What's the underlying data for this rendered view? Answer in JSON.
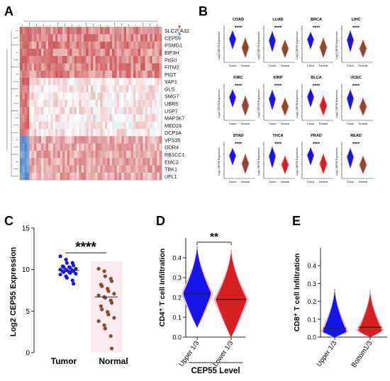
{
  "panels": {
    "A": "A",
    "B": "B",
    "C": "C",
    "D": "D",
    "E": "E"
  },
  "colors": {
    "tumor": "#1515e8",
    "normal": "#8a4a2a",
    "normal_fill": "#d42020",
    "pink": "#f3b4cf",
    "heat_red": "#c83a3a",
    "heat_blue": "#2f6fb5"
  },
  "chart_data": [
    {
      "panel": "A",
      "type": "heatmap",
      "genes": [
        "SLC25A32",
        "CEP55",
        "PSMG1",
        "EIF3H",
        "PIGU",
        "FITM2",
        "PIGT",
        "YAP1",
        "GLS",
        "SMG7",
        "UBR5",
        "USP7",
        "MAP3K7",
        "MED23",
        "DCP1A",
        "VPS35",
        "ODR4",
        "RB1CC1",
        "EMC2",
        "TBK1",
        "UFL1"
      ]
    },
    {
      "panel": "B",
      "type": "violin",
      "ylabel": "Log2 CEP55 Expression",
      "categories": [
        "Tumor",
        "Normal"
      ],
      "significance": "****",
      "cancers": [
        "COAD",
        "LUAD",
        "BRCA",
        "LIHC",
        "KIRC",
        "KIRP",
        "BLCA",
        "UCEC",
        "STAD",
        "THCA",
        "PRAD",
        "READ"
      ]
    },
    {
      "panel": "C",
      "type": "scatter",
      "ylabel": "Log2 CEP55 Expression",
      "categories": [
        "Tumor",
        "Normal"
      ],
      "ylim": [
        0,
        15
      ],
      "yticks": [
        "0",
        "5",
        "10",
        "15"
      ],
      "significance": "****",
      "series": [
        {
          "name": "Tumor",
          "values": [
            11.6,
            11.2,
            10.8,
            10.8,
            10.5,
            10.4,
            10.3,
            10.3,
            10.2,
            10.1,
            10.0,
            10.0,
            9.9,
            9.9,
            9.8,
            9.8,
            9.7,
            9.7,
            9.6,
            9.5,
            9.4,
            9.2,
            9.0,
            8.7,
            8.3
          ]
        },
        {
          "name": "Normal",
          "values": [
            10.1,
            9.8,
            9.2,
            8.9,
            8.6,
            8.2,
            8.0,
            7.7,
            7.4,
            7.1,
            6.9,
            6.7,
            6.6,
            6.3,
            6.0,
            5.6,
            5.2,
            4.9,
            4.6,
            4.2,
            3.8,
            3.3,
            2.9,
            2.0,
            0.5
          ]
        }
      ],
      "median_tumor": 9.9,
      "median_normal": 6.7
    },
    {
      "panel": "D",
      "type": "violin",
      "ylabel": "CD4⁺ T cell Infiltration",
      "xlabel": "CEP55 Level",
      "categories": [
        "Upper 1/3",
        "Lower 1/3"
      ],
      "ylim": [
        0,
        0.5
      ],
      "yticks": [
        "0.0",
        "0.1",
        "0.2",
        "0.3",
        "0.4"
      ],
      "significance": "**",
      "medians": [
        0.22,
        0.19
      ],
      "max": [
        0.46,
        0.44
      ],
      "min": [
        0.05,
        0.0
      ]
    },
    {
      "panel": "E",
      "type": "violin",
      "ylabel": "CD8⁺ T cell Infiltration",
      "categories": [
        "Upper 1/3",
        "Bottom1/3"
      ],
      "ylim": [
        0,
        0.5
      ],
      "yticks": [
        "0.0",
        "0.1",
        "0.2",
        "0.3",
        "0.4"
      ],
      "medians": [
        0.05,
        0.055
      ],
      "max": [
        0.27,
        0.26
      ],
      "min": [
        0.0,
        0.0
      ]
    }
  ]
}
